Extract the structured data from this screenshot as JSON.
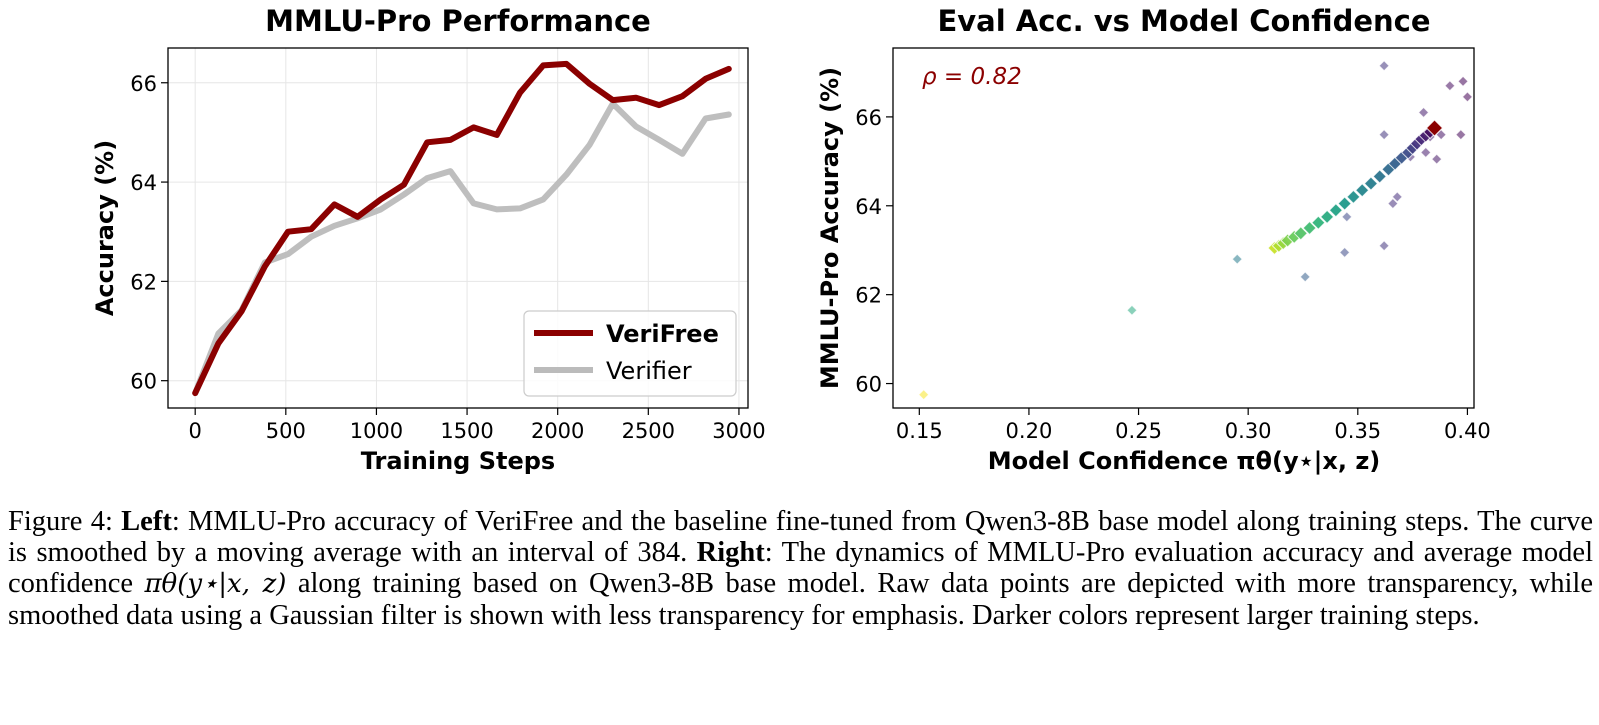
{
  "figure": {
    "left": {
      "chart_data": {
        "type": "line",
        "title": "MMLU-Pro Performance",
        "xlabel": "Training Steps",
        "ylabel": "Accuracy (%)",
        "xlim": [
          -150,
          3050
        ],
        "ylim": [
          59.45,
          66.7
        ],
        "xticks": [
          0,
          500,
          1000,
          1500,
          2000,
          2500,
          3000
        ],
        "yticks": [
          60,
          62,
          64,
          66
        ],
        "grid": true,
        "legend_position": "bottom-right",
        "series": [
          {
            "name": "VeriFree",
            "color": "#8b0000",
            "x": [
              0,
              128,
              256,
              384,
              512,
              640,
              768,
              896,
              1024,
              1152,
              1280,
              1408,
              1536,
              1664,
              1792,
              1920,
              2048,
              2176,
              2304,
              2432,
              2560,
              2688,
              2816,
              2944
            ],
            "y": [
              59.75,
              60.75,
              61.4,
              62.3,
              63.0,
              63.05,
              63.55,
              63.3,
              63.65,
              63.95,
              64.8,
              64.85,
              65.1,
              64.95,
              65.8,
              66.35,
              66.38,
              65.98,
              65.65,
              65.7,
              65.55,
              65.73,
              66.08,
              66.28
            ]
          },
          {
            "name": "Verifier",
            "color": "#bbbbbb",
            "x": [
              0,
              128,
              256,
              384,
              512,
              640,
              768,
              896,
              1024,
              1152,
              1280,
              1408,
              1536,
              1664,
              1792,
              1920,
              2048,
              2176,
              2304,
              2432,
              2560,
              2688,
              2816,
              2944
            ],
            "y": [
              59.75,
              60.95,
              61.42,
              62.38,
              62.55,
              62.9,
              63.12,
              63.27,
              63.45,
              63.75,
              64.08,
              64.22,
              63.57,
              63.45,
              63.47,
              63.65,
              64.15,
              64.75,
              65.58,
              65.12,
              64.85,
              64.57,
              65.28,
              65.36
            ]
          }
        ]
      }
    },
    "right": {
      "chart_data": {
        "type": "scatter",
        "title": "Eval Acc. vs Model Confidence",
        "xlabel": "Model Confidence πθ(y⋆|x, z)",
        "ylabel": "MMLU-Pro Accuracy (%)",
        "annotation": "ρ = 0.82",
        "xlim": [
          0.138,
          0.403
        ],
        "ylim": [
          59.45,
          67.55
        ],
        "xticks": [
          0.15,
          0.2,
          0.25,
          0.3,
          0.35,
          0.4
        ],
        "xtick_labels": [
          "0.15",
          "0.20",
          "0.25",
          "0.30",
          "0.35",
          "0.40"
        ],
        "yticks": [
          60,
          62,
          64,
          66
        ],
        "grid": false,
        "colormap": "viridis_r",
        "raw_points": [
          [
            0.152,
            59.75
          ],
          [
            0.247,
            61.65
          ],
          [
            0.295,
            62.8
          ],
          [
            0.326,
            62.4
          ],
          [
            0.344,
            62.95
          ],
          [
            0.345,
            63.75
          ],
          [
            0.362,
            63.1
          ],
          [
            0.366,
            64.05
          ],
          [
            0.368,
            64.2
          ],
          [
            0.362,
            65.6
          ],
          [
            0.362,
            67.15
          ],
          [
            0.374,
            65.1
          ],
          [
            0.375,
            65.3
          ],
          [
            0.378,
            65.45
          ],
          [
            0.38,
            66.1
          ],
          [
            0.381,
            65.2
          ],
          [
            0.383,
            65.55
          ],
          [
            0.386,
            65.05
          ],
          [
            0.388,
            65.6
          ],
          [
            0.392,
            66.7
          ],
          [
            0.397,
            65.6
          ],
          [
            0.398,
            66.8
          ],
          [
            0.4,
            66.45
          ]
        ],
        "smoothed_points": [
          [
            0.312,
            63.05
          ],
          [
            0.314,
            63.1
          ],
          [
            0.316,
            63.16
          ],
          [
            0.318,
            63.22
          ],
          [
            0.321,
            63.3
          ],
          [
            0.324,
            63.38
          ],
          [
            0.328,
            63.5
          ],
          [
            0.332,
            63.62
          ],
          [
            0.336,
            63.75
          ],
          [
            0.34,
            63.9
          ],
          [
            0.344,
            64.05
          ],
          [
            0.348,
            64.2
          ],
          [
            0.352,
            64.35
          ],
          [
            0.356,
            64.5
          ],
          [
            0.36,
            64.66
          ],
          [
            0.364,
            64.82
          ],
          [
            0.367,
            64.95
          ],
          [
            0.37,
            65.08
          ],
          [
            0.373,
            65.2
          ],
          [
            0.375,
            65.3
          ],
          [
            0.377,
            65.4
          ],
          [
            0.379,
            65.5
          ],
          [
            0.381,
            65.58
          ],
          [
            0.383,
            65.66
          ],
          [
            0.385,
            65.75
          ]
        ]
      }
    }
  },
  "caption": {
    "label": "Figure 4:",
    "left_head": "Left",
    "left_text": ": MMLU-Pro accuracy of VeriFree and the baseline fine-tuned from Qwen3-8B base model along training steps. The curve is smoothed by a moving average with an interval of 384. ",
    "right_head": "Right",
    "right_text_1": ": The dynamics of MMLU-Pro evaluation accuracy and average model confidence ",
    "math": "πθ(y⋆|x, z)",
    "right_text_2": " along training based on Qwen3-8B base model. Raw data points are depicted with more transparency, while smoothed data using a Gaussian filter is shown with less transparency for emphasis. Darker colors represent larger training steps."
  }
}
